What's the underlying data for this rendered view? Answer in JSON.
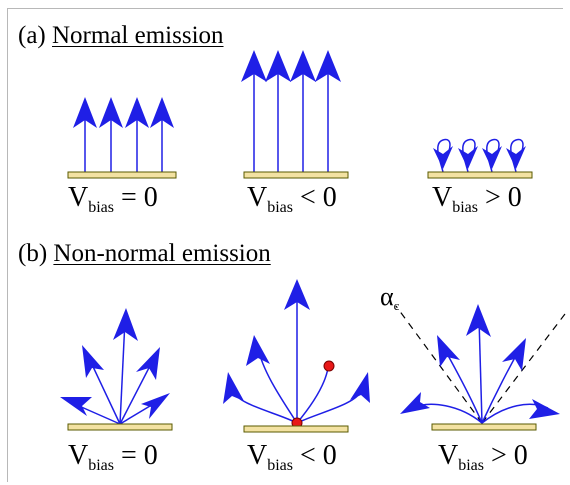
{
  "section_a": {
    "label": "(a) ",
    "title": "Normal emission"
  },
  "section_b": {
    "label": "(b) ",
    "title": "Non-normal emission"
  },
  "bias_symbol": "V",
  "bias_sub": "bias",
  "panels_a": [
    {
      "condition": " = 0"
    },
    {
      "condition": " < 0"
    },
    {
      "condition": " > 0"
    }
  ],
  "panels_b": [
    {
      "condition": " = 0"
    },
    {
      "condition": " < 0"
    },
    {
      "condition": " > 0"
    }
  ],
  "critical_angle": {
    "symbol": "α",
    "sub": "c"
  },
  "colors": {
    "arrow": "#1f1fe6",
    "substrate": "#f3e2a2",
    "substrate_edge": "#5a5a00",
    "dot": "#e81818",
    "dashed": "#000000"
  }
}
